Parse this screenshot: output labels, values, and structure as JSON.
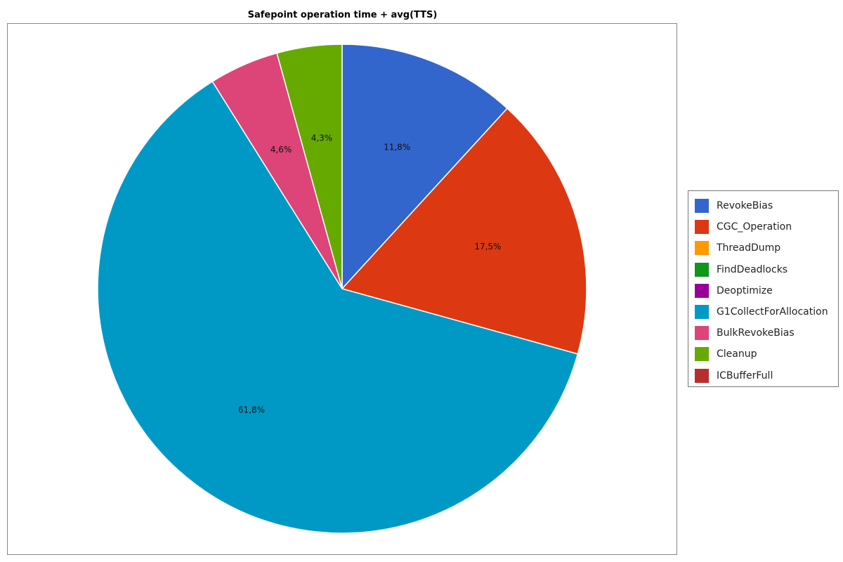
{
  "chart_data": {
    "type": "pie",
    "title": "Safepoint operation time + avg(TTS)",
    "legend_position": "right",
    "start_angle_deg": 0,
    "direction": "clockwise",
    "slices": [
      {
        "name": "RevokeBias",
        "value": 11.8,
        "label": "11,8%",
        "color": "#3366CC"
      },
      {
        "name": "CGC_Operation",
        "value": 17.5,
        "label": "17,5%",
        "color": "#DC3912"
      },
      {
        "name": "ThreadDump",
        "value": 0,
        "label": "",
        "color": "#FF9900"
      },
      {
        "name": "FindDeadlocks",
        "value": 0,
        "label": "",
        "color": "#109618"
      },
      {
        "name": "Deoptimize",
        "value": 0,
        "label": "",
        "color": "#990099"
      },
      {
        "name": "G1CollectForAllocation",
        "value": 61.8,
        "label": "61,8%",
        "color": "#0099C6"
      },
      {
        "name": "BulkRevokeBias",
        "value": 4.6,
        "label": "4,6%",
        "color": "#DD4477"
      },
      {
        "name": "Cleanup",
        "value": 4.3,
        "label": "4,3%",
        "color": "#66AA00"
      },
      {
        "name": "ICBufferFull",
        "value": 0,
        "label": "",
        "color": "#B82E2E"
      }
    ]
  }
}
